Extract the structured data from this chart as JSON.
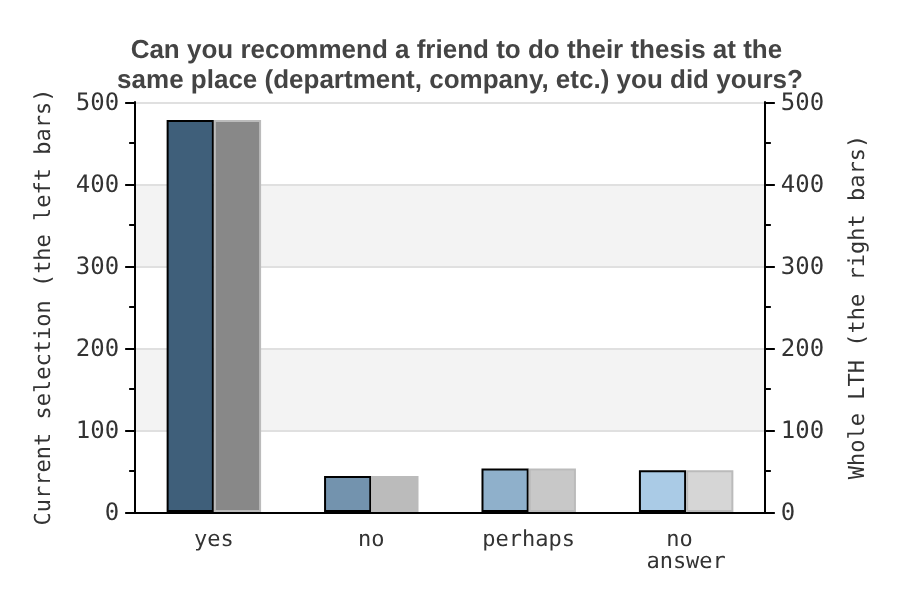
{
  "chart_data": {
    "type": "bar",
    "title": "Can you recommend a friend to do their thesis at the same place (department, company, etc.) you did yours?",
    "categories": [
      "yes",
      "no",
      "perhaps",
      "no answer"
    ],
    "ylabel": "Current selection (the left bars)",
    "y2label": "Whole LTH (the right bars)",
    "series": [
      {
        "colors": [
          "#3f5f7a",
          "#7393ae",
          "#8fb0cb",
          "#aacbe6"
        ],
        "values": [
          478,
          44,
          53,
          51
        ]
      },
      {
        "colors": [
          "#888888",
          "#bbbbbb",
          "#c8c8c8",
          "#d6d6d6"
        ],
        "values": [
          478,
          44,
          53,
          51
        ],
        "axis": "y2"
      }
    ],
    "ylim": [
      0,
      500
    ],
    "yticks": [
      0,
      100,
      200,
      300,
      400,
      500
    ],
    "y2lim": [
      0,
      500
    ],
    "y2ticks": [
      0,
      100,
      200,
      300,
      400,
      500
    ],
    "grid": "y"
  }
}
